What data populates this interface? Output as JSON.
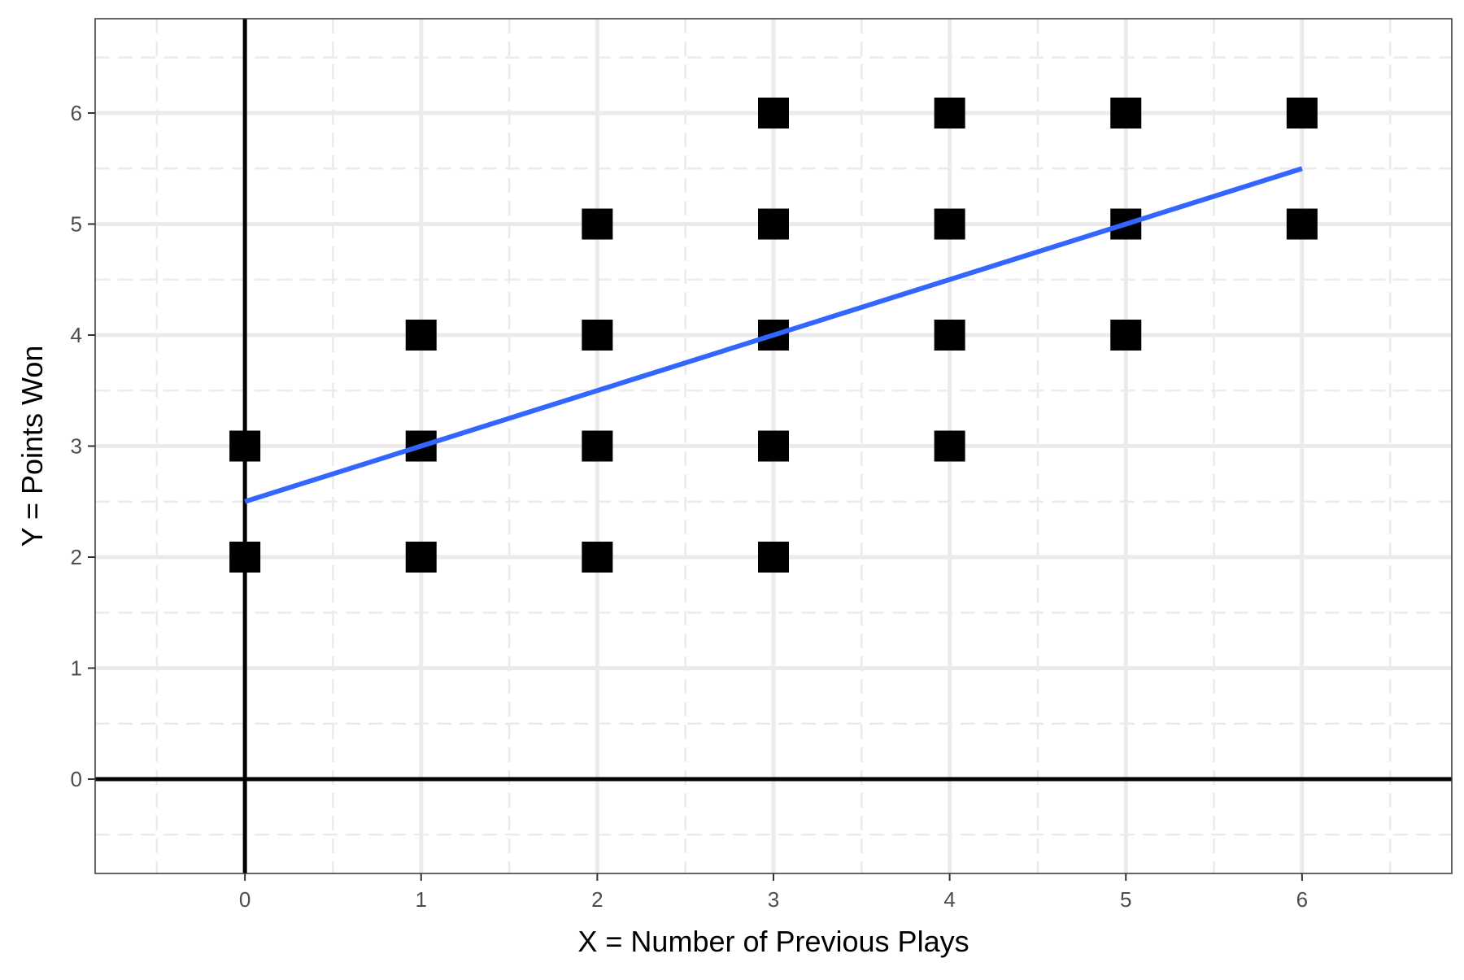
{
  "chart_data": {
    "type": "scatter",
    "title": "",
    "xlabel": "X = Number of Previous Plays",
    "ylabel": "Y = Points Won",
    "xlim": [
      -0.85,
      6.85
    ],
    "ylim": [
      -0.85,
      6.85
    ],
    "x_ticks": [
      0,
      1,
      2,
      3,
      4,
      5,
      6
    ],
    "y_ticks": [
      0,
      1,
      2,
      3,
      4,
      5,
      6
    ],
    "x_tick_labels": [
      "0",
      "1",
      "2",
      "3",
      "4",
      "5",
      "6"
    ],
    "y_tick_labels": [
      "0",
      "1",
      "2",
      "3",
      "4",
      "5",
      "6"
    ],
    "grid": true,
    "reference_lines": {
      "x": 0,
      "y": 0
    },
    "points": [
      {
        "x": 0,
        "y": 2
      },
      {
        "x": 0,
        "y": 3
      },
      {
        "x": 1,
        "y": 2
      },
      {
        "x": 1,
        "y": 3
      },
      {
        "x": 1,
        "y": 4
      },
      {
        "x": 2,
        "y": 2
      },
      {
        "x": 2,
        "y": 3
      },
      {
        "x": 2,
        "y": 4
      },
      {
        "x": 2,
        "y": 5
      },
      {
        "x": 3,
        "y": 2
      },
      {
        "x": 3,
        "y": 3
      },
      {
        "x": 3,
        "y": 4
      },
      {
        "x": 3,
        "y": 5
      },
      {
        "x": 3,
        "y": 6
      },
      {
        "x": 4,
        "y": 3
      },
      {
        "x": 4,
        "y": 4
      },
      {
        "x": 4,
        "y": 5
      },
      {
        "x": 4,
        "y": 6
      },
      {
        "x": 5,
        "y": 4
      },
      {
        "x": 5,
        "y": 5
      },
      {
        "x": 5,
        "y": 6
      },
      {
        "x": 6,
        "y": 5
      },
      {
        "x": 6,
        "y": 6
      }
    ],
    "fit_line": {
      "x": [
        0,
        6
      ],
      "y": [
        2.5,
        5.5
      ]
    },
    "colors": {
      "points": "#000000",
      "fit_line": "#3366FF",
      "grid": "#EBEBEB",
      "panel_border": "#333333"
    }
  }
}
